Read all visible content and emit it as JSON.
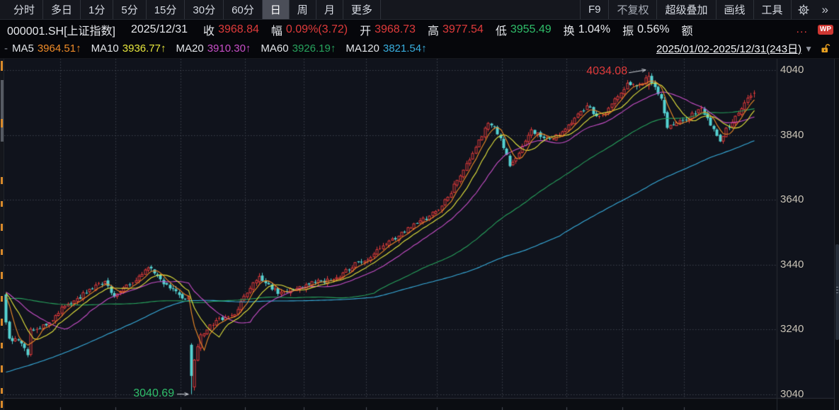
{
  "toolbar": {
    "periods": [
      {
        "label": "分时",
        "active": false
      },
      {
        "label": "多日",
        "active": false
      },
      {
        "label": "1分",
        "active": false
      },
      {
        "label": "5分",
        "active": false
      },
      {
        "label": "15分",
        "active": false
      },
      {
        "label": "30分",
        "active": false
      },
      {
        "label": "60分",
        "active": false
      },
      {
        "label": "日",
        "active": true
      },
      {
        "label": "周",
        "active": false
      },
      {
        "label": "月",
        "active": false
      },
      {
        "label": "更多",
        "active": false
      }
    ],
    "right": {
      "f9": "F9",
      "adjust": "不复权",
      "overlay": "超级叠加",
      "draw": "画线",
      "tools": "工具",
      "more": "»"
    }
  },
  "infobar": {
    "symbol": "000001.SH[上证指数]",
    "date": "2025/12/31",
    "fields": [
      {
        "label": "收",
        "value": "3968.84",
        "color": "#e03b3b"
      },
      {
        "label": "幅",
        "value": "0.09%(3.72)",
        "color": "#e03b3b"
      },
      {
        "label": "开",
        "value": "3968.73",
        "color": "#e03b3b"
      },
      {
        "label": "高",
        "value": "3977.54",
        "color": "#e03b3b"
      },
      {
        "label": "低",
        "value": "3955.49",
        "color": "#2fbe6a"
      },
      {
        "label": "换",
        "value": "1.04%",
        "color": "#e8eaee"
      },
      {
        "label": "振",
        "value": "0.56%",
        "color": "#e8eaee"
      },
      {
        "label": "额",
        "value": "...",
        "color": "#e03b3b"
      }
    ],
    "wp_badge": "WP"
  },
  "mabar": {
    "prefix": "-",
    "items": [
      {
        "label": "MA5",
        "value": "3964.51↑",
        "color": "#f08c28"
      },
      {
        "label": "MA10",
        "value": "3936.77↑",
        "color": "#e6e63c"
      },
      {
        "label": "MA20",
        "value": "3910.30↑",
        "color": "#c94fc9"
      },
      {
        "label": "MA60",
        "value": "3926.19↑",
        "color": "#27a35d"
      },
      {
        "label": "MA120",
        "value": "3821.54↑",
        "color": "#38aede"
      }
    ],
    "range": "2025/01/02-2025/12/31(243日)",
    "range_arrow": "▼"
  },
  "chart_data": {
    "type": "candlestick",
    "symbol": "000001.SH",
    "name": "上证指数",
    "period": "日",
    "days": 243,
    "date_range": "2025/01/02-2025/12/31",
    "last_day": {
      "open": 3968.73,
      "high": 3977.54,
      "low": 3955.49,
      "close": 3968.84,
      "change_pct": "0.09%",
      "change": "3.72",
      "turnover": "1.04%",
      "amplitude": "0.56%"
    },
    "ma_values": {
      "MA5": 3964.51,
      "MA10": 3936.77,
      "MA20": 3910.3,
      "MA60": 3926.19,
      "MA120": 3821.54
    },
    "high_annotation": {
      "text": "4034.08",
      "day": 208,
      "price": 4034.08,
      "color": "#e03b3b"
    },
    "low_annotation": {
      "text": "3040.69",
      "day": 60,
      "price": 3040.69,
      "color": "#2fbe6a"
    },
    "y_ticks": [
      4040,
      3840,
      3640,
      3440,
      3240,
      3040
    ],
    "price_top": 4075,
    "price_bottom": 3029,
    "month_start_days": [
      18,
      36,
      57,
      78,
      97,
      117,
      140,
      161,
      182,
      200,
      220
    ],
    "anchors": [
      [
        0,
        3262
      ],
      [
        1,
        3212
      ],
      [
        4,
        3207
      ],
      [
        7,
        3161
      ],
      [
        8,
        3241
      ],
      [
        13,
        3253
      ],
      [
        19,
        3312
      ],
      [
        26,
        3353
      ],
      [
        32,
        3388
      ],
      [
        35,
        3342
      ],
      [
        40,
        3378
      ],
      [
        46,
        3430
      ],
      [
        49,
        3406
      ],
      [
        53,
        3367
      ],
      [
        57,
        3336
      ],
      [
        59,
        3342
      ],
      [
        60,
        3097
      ],
      [
        61,
        3146
      ],
      [
        62,
        3187
      ],
      [
        63,
        3224
      ],
      [
        68,
        3268
      ],
      [
        74,
        3286
      ],
      [
        77,
        3343
      ],
      [
        82,
        3404
      ],
      [
        88,
        3350
      ],
      [
        93,
        3362
      ],
      [
        100,
        3384
      ],
      [
        107,
        3400
      ],
      [
        111,
        3424
      ],
      [
        114,
        3448
      ],
      [
        118,
        3462
      ],
      [
        122,
        3498
      ],
      [
        127,
        3528
      ],
      [
        133,
        3568
      ],
      [
        137,
        3590
      ],
      [
        140,
        3608
      ],
      [
        143,
        3648
      ],
      [
        146,
        3700
      ],
      [
        149,
        3752
      ],
      [
        152,
        3802
      ],
      [
        156,
        3876
      ],
      [
        158,
        3866
      ],
      [
        160,
        3830
      ],
      [
        163,
        3744
      ],
      [
        165,
        3768
      ],
      [
        170,
        3856
      ],
      [
        173,
        3834
      ],
      [
        177,
        3826
      ],
      [
        180,
        3850
      ],
      [
        184,
        3892
      ],
      [
        188,
        3930
      ],
      [
        191,
        3898
      ],
      [
        194,
        3906
      ],
      [
        198,
        3958
      ],
      [
        201,
        4000
      ],
      [
        204,
        3990
      ],
      [
        208,
        4021
      ],
      [
        210,
        3988
      ],
      [
        212,
        3952
      ],
      [
        214,
        3862
      ],
      [
        216,
        3872
      ],
      [
        219,
        3884
      ],
      [
        223,
        3906
      ],
      [
        225,
        3922
      ],
      [
        227,
        3892
      ],
      [
        229,
        3858
      ],
      [
        231,
        3820
      ],
      [
        233,
        3861
      ],
      [
        235,
        3879
      ],
      [
        238,
        3921
      ],
      [
        240,
        3954
      ],
      [
        241,
        3960
      ],
      [
        242,
        3968.84
      ]
    ],
    "special_candles": [
      {
        "day": 0,
        "open": 3348,
        "high": 3352,
        "low": 3255,
        "close": 3262
      },
      {
        "day": 60,
        "open": 3193,
        "high": 3198,
        "low": 3040.69,
        "close": 3097
      },
      {
        "day": 61,
        "open": 3063,
        "high": 3149,
        "low": 3052,
        "close": 3146
      },
      {
        "day": 208,
        "open": 3992,
        "high": 4034.08,
        "low": 3980,
        "close": 4021
      },
      {
        "day": 242,
        "open": 3968.73,
        "high": 3977.54,
        "low": 3955.49,
        "close": 3968.84
      }
    ],
    "pre_close_segments": [
      [
        50,
        2860,
        2860
      ],
      [
        20,
        2860,
        3340
      ],
      [
        50,
        3340,
        3365
      ]
    ],
    "ma_lines": [
      {
        "period": 120,
        "color": "#38aede"
      },
      {
        "period": 60,
        "color": "#27a35d"
      },
      {
        "period": 20,
        "color": "#c94fc9"
      },
      {
        "period": 10,
        "color": "#e6e63c"
      },
      {
        "period": 5,
        "color": "#f08c28"
      }
    ],
    "colors": {
      "up": "#e13a3a",
      "down": "#54d2d2",
      "grid": "#3e424c",
      "bg": "#10131c",
      "band": "#0b0d12",
      "separator": "#2c3038",
      "axis_border": "#282c33",
      "arrow": "#cfd3da"
    }
  }
}
